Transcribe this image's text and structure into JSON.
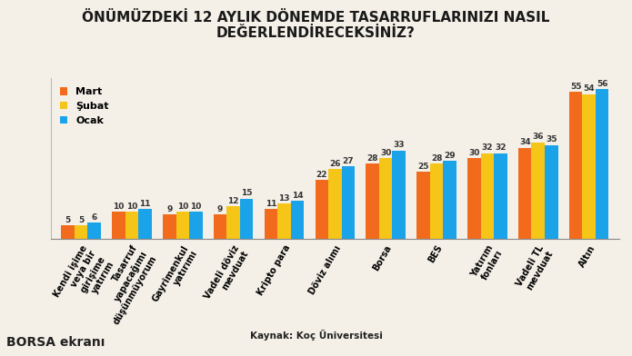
{
  "chart_data": {
    "type": "bar",
    "title": "ÖNÜMÜZDEKİ 12 AYLIK DÖNEMDE TASARRUFLARINIZI NASIL DEĞERLENDİRECEKSİNİZ?",
    "categories": [
      "Kendi işime veya bir girişime yatırım",
      "Tasarruf yapacağımı düşünmüyorum",
      "Gayrimenkul yatırımı",
      "Vadeli döviz mevduat",
      "Kripto para",
      "Döviz alımı",
      "Borsa",
      "BES",
      "Yatırım fonları",
      "Vadeli TL mevduat",
      "Altın"
    ],
    "series": [
      {
        "name": "Mart",
        "color": "#f26b1d",
        "values": [
          5,
          10,
          9,
          9,
          11,
          22,
          28,
          25,
          30,
          34,
          55
        ]
      },
      {
        "name": "Şubat",
        "color": "#f5c518",
        "values": [
          5,
          10,
          10,
          12,
          13,
          26,
          30,
          28,
          32,
          36,
          54
        ]
      },
      {
        "name": "Ocak",
        "color": "#1aa3e8",
        "values": [
          6,
          11,
          10,
          15,
          14,
          27,
          33,
          29,
          32,
          35,
          56
        ]
      }
    ],
    "ylim": [
      0,
      60
    ],
    "data_labels": true,
    "tick_labels": "x",
    "legend": "upper left",
    "annotations": [
      "Kaynak: Koç Üniversitesi",
      "BORSA ekranı"
    ]
  }
}
